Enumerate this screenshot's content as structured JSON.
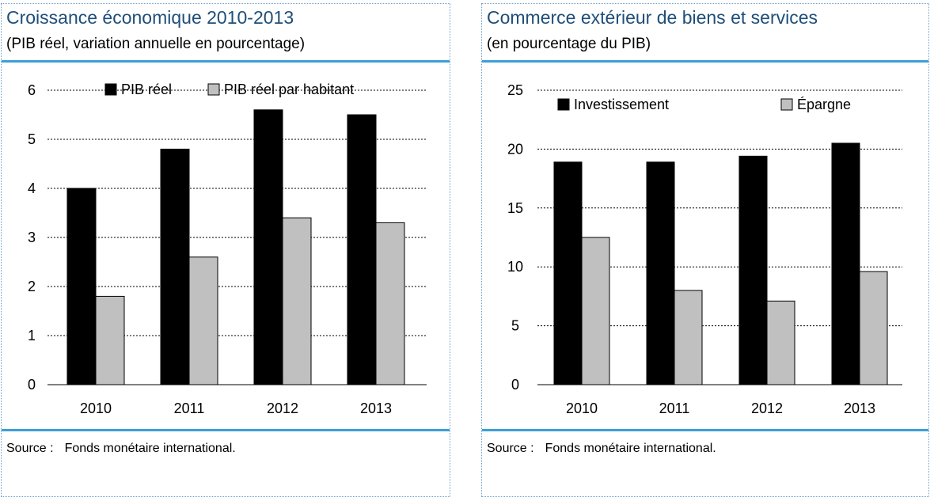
{
  "colors": {
    "series_black": "#000000",
    "series_grey": "#c0c0c0",
    "title_blue": "#1f4e79",
    "rule_blue": "#3aa0d8"
  },
  "left": {
    "title": "Croissance économique 2010-2013",
    "subtitle": "(PIB réel, variation annuelle en pourcentage)",
    "source_label": "Source :",
    "source_text": "Fonds monétaire international."
  },
  "right": {
    "title": "Commerce extérieur de biens et services",
    "subtitle": "(en pourcentage du PIB)",
    "source_label": "Source :",
    "source_text": "Fonds monétaire international."
  },
  "chart_data": [
    {
      "type": "bar",
      "title": "Croissance économique 2010-2013",
      "subtitle": "(PIB réel, variation annuelle en pourcentage)",
      "categories": [
        "2010",
        "2011",
        "2012",
        "2013"
      ],
      "series": [
        {
          "name": "PIB réel",
          "values": [
            4.0,
            4.8,
            5.6,
            5.5
          ]
        },
        {
          "name": "PIB réel par habitant",
          "values": [
            1.8,
            2.6,
            3.4,
            3.3
          ]
        }
      ],
      "ylim": [
        0,
        6
      ],
      "yticks": [
        0,
        1,
        2,
        3,
        4,
        5,
        6
      ],
      "grid": true,
      "legend": "top"
    },
    {
      "type": "bar",
      "title": "Commerce extérieur de biens et services",
      "subtitle": "(en pourcentage du PIB)",
      "categories": [
        "2010",
        "2011",
        "2012",
        "2013"
      ],
      "series": [
        {
          "name": "Investissement",
          "values": [
            18.9,
            18.9,
            19.4,
            20.5
          ]
        },
        {
          "name": "Épargne",
          "values": [
            12.5,
            8.0,
            7.1,
            9.6
          ]
        }
      ],
      "ylim": [
        0,
        25
      ],
      "yticks": [
        0,
        5,
        10,
        15,
        20,
        25
      ],
      "grid": true,
      "legend": "top"
    }
  ]
}
